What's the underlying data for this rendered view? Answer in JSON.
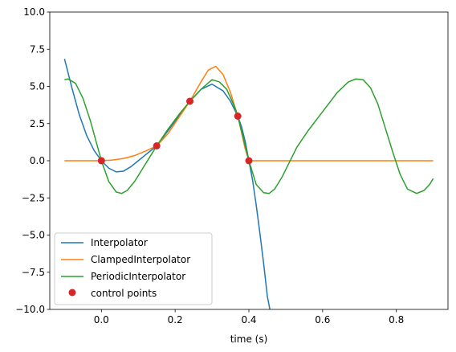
{
  "chart_data": {
    "type": "line",
    "title": "",
    "xlabel": "time (s)",
    "ylabel": "",
    "xlim": [
      -0.14,
      0.94
    ],
    "ylim": [
      -10.0,
      10.0
    ],
    "grid": false,
    "legend_location": "lower-left",
    "xticks": [
      0.0,
      0.2,
      0.4,
      0.6,
      0.8
    ],
    "xtick_labels": [
      "0.0",
      "0.2",
      "0.4",
      "0.6",
      "0.8"
    ],
    "yticks": [
      -10.0,
      -7.5,
      -5.0,
      -2.5,
      0.0,
      2.5,
      5.0,
      7.5,
      10.0
    ],
    "ytick_labels": [
      "−10.0",
      "−7.5",
      "−5.0",
      "−2.5",
      "0.0",
      "2.5",
      "5.0",
      "7.5",
      "10.0"
    ],
    "control_points": {
      "name": "control points",
      "color": "#d62728",
      "x": [
        0.0,
        0.15,
        0.24,
        0.37,
        0.4
      ],
      "y": [
        0.0,
        1.0,
        4.0,
        3.0,
        0.0
      ]
    },
    "series": [
      {
        "name": "Interpolator",
        "color": "#1f77b4",
        "x": [
          -0.1,
          -0.08,
          -0.06,
          -0.04,
          -0.02,
          0.0,
          0.02,
          0.04,
          0.06,
          0.08,
          0.1,
          0.12,
          0.15,
          0.18,
          0.21,
          0.24,
          0.27,
          0.3,
          0.33,
          0.35,
          0.37,
          0.38,
          0.39,
          0.4,
          0.41,
          0.42,
          0.43,
          0.44,
          0.45,
          0.457
        ],
        "values": [
          6.85,
          4.9,
          3.1,
          1.7,
          0.7,
          0.0,
          -0.5,
          -0.75,
          -0.7,
          -0.4,
          0.0,
          0.4,
          1.0,
          2.0,
          3.0,
          4.0,
          4.8,
          5.15,
          4.7,
          4.0,
          3.0,
          2.3,
          1.3,
          0.0,
          -1.3,
          -3.0,
          -4.9,
          -6.9,
          -9.1,
          -10.0
        ]
      },
      {
        "name": "ClampedInterpolator",
        "color": "#ff7f0e",
        "x": [
          -0.1,
          0.0,
          0.03,
          0.06,
          0.09,
          0.12,
          0.15,
          0.18,
          0.21,
          0.24,
          0.27,
          0.29,
          0.31,
          0.33,
          0.35,
          0.37,
          0.38,
          0.39,
          0.4,
          0.45,
          0.9
        ],
        "values": [
          0.0,
          0.0,
          0.05,
          0.15,
          0.35,
          0.65,
          1.0,
          1.8,
          2.9,
          4.0,
          5.3,
          6.1,
          6.35,
          5.8,
          4.6,
          3.0,
          1.9,
          0.8,
          0.0,
          0.0,
          0.0
        ]
      },
      {
        "name": "PeriodicInterpolator",
        "color": "#2ca02c",
        "x": [
          -0.1,
          -0.09,
          -0.07,
          -0.05,
          -0.03,
          -0.01,
          0.0,
          0.02,
          0.04,
          0.055,
          0.07,
          0.09,
          0.11,
          0.13,
          0.15,
          0.18,
          0.21,
          0.24,
          0.27,
          0.3,
          0.32,
          0.34,
          0.36,
          0.37,
          0.38,
          0.39,
          0.4,
          0.42,
          0.44,
          0.455,
          0.47,
          0.49,
          0.51,
          0.53,
          0.56,
          0.6,
          0.64,
          0.67,
          0.69,
          0.71,
          0.73,
          0.75,
          0.77,
          0.79,
          0.81,
          0.83,
          0.855,
          0.875,
          0.89,
          0.9
        ],
        "values": [
          5.45,
          5.5,
          5.2,
          4.2,
          2.7,
          0.9,
          0.0,
          -1.4,
          -2.1,
          -2.2,
          -2.0,
          -1.4,
          -0.6,
          0.2,
          1.0,
          2.1,
          3.1,
          4.0,
          4.8,
          5.45,
          5.3,
          4.8,
          3.7,
          3.0,
          2.0,
          1.0,
          0.0,
          -1.6,
          -2.15,
          -2.2,
          -1.9,
          -1.1,
          -0.1,
          0.9,
          2.0,
          3.3,
          4.6,
          5.3,
          5.5,
          5.45,
          4.9,
          3.8,
          2.2,
          0.6,
          -0.9,
          -1.9,
          -2.2,
          -2.0,
          -1.6,
          -1.2
        ]
      }
    ]
  }
}
